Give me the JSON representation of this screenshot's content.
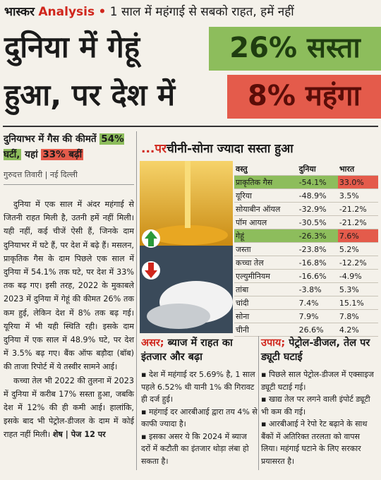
{
  "header": {
    "brand": "भास्कर",
    "section": "Analysis",
    "tagline": "1 साल में महंगाई से सबको राहत, हमें नहीं"
  },
  "headline": {
    "line1": "दुनिया में गेहूं",
    "highlight1": "26% सस्ता",
    "line2": "हुआ, पर देश में",
    "highlight2": "8% महंगा"
  },
  "subhead": {
    "text": "दुनियाभर में गैस की कीमतें",
    "world": "54% घटीं,",
    "mid": "यहां",
    "india": "33% बढ़ीं"
  },
  "byline": {
    "author": "गुरुदत्त तिवारी",
    "place": "नई दिल्ली"
  },
  "body": [
    "दुनिया में एक साल में अंदर महंगाई से जितनी राहत मिली है, उतनी हमें नहीं मिली। यही नहीं, कई चीजें ऐसी हैं, जिनके दाम दुनियाभर में घटे हैं, पर देश में बढ़े हैं। मसलन, प्राकृतिक गैस के दाम पिछले एक साल में दुनिया में 54.1% तक घटे, पर देश में 33% तक बढ़ गए। इसी तरह, 2022 के मुकाबले 2023 में दुनिया में गेहूं की कीमत 26% तक कम हुई, लेकिन देश में 8% तक बढ़ गई। यूरिया में भी यही स्थिति रही। इसके दाम दुनिया में एक साल में 48.9% घटे, पर देश में 3.5% बढ़ गए। बैंक ऑफ बड़ौदा (बॉब) की ताजा रिपोर्ट में ये तस्वीर सामने आई।",
    "कच्चा तेल भी 2022 की तुलना में 2023 में दुनिया में करीब 17% सस्ता हुआ, जबकि देश में 12% की ही कमी आई। हालांकि, इसके बाद भी पेट्रोल-डीजल के दाम में कोई राहत नहीं मिली।"
  ],
  "continued": "शेष | पेज 12 पर",
  "table": {
    "title_lead": "...पर",
    "title": "चीनी-सोना ज्यादा सस्ता हुआ",
    "headers": [
      "वस्तु",
      "दुनिया",
      "भारत"
    ],
    "rows": [
      [
        "प्राकृतिक गैस",
        "-54.1%",
        "33.0%"
      ],
      [
        "यूरिया",
        "-48.9%",
        "3.5%"
      ],
      [
        "सोयाबीन ऑयल",
        "-32.9%",
        "-21.2%"
      ],
      [
        "पॉम आयल",
        "-30.5%",
        "-21.2%"
      ],
      [
        "गेहूं",
        "-26.3%",
        "7.6%"
      ],
      [
        "जस्ता",
        "-23.8%",
        "5.2%"
      ],
      [
        "कच्चा तेल",
        "-16.8%",
        "-12.2%"
      ],
      [
        "एल्युमीनियम",
        "-16.6%",
        "-4.9%"
      ],
      [
        "तांबा",
        "-3.8%",
        "5.3%"
      ],
      [
        "चांदी",
        "7.4%",
        "15.1%"
      ],
      [
        "सोना",
        "7.9%",
        "7.8%"
      ],
      [
        "चीनी",
        "26.6%",
        "4.2%"
      ]
    ]
  },
  "boxes": [
    {
      "lead": "असर;",
      "title": "ब्याज में राहत का इंतजार और बढ़ा",
      "bullets": [
        "देश में महंगाई दर 5.69% है, 1 साल पहले 6.52% थी यानी 1% की गिरावट ही दर्ज हुई।",
        "महंगाई दर आरबीआई द्वारा तय 4% से काफी ज्यादा है।",
        "इसका असर ये कि 2024 में ब्याज दरों में कटौती का इंतजार थोड़ा लंबा हो सकता है।"
      ]
    },
    {
      "lead": "उपाय;",
      "title": "पेट्रोल-डीजल, तेल पर ड्यूटी घटाई",
      "bullets": [
        "पिछले साल पेट्रोल-डीजल में एक्साइज ड्यूटी घटाई गई।",
        "खाद्य तेल पर लगने वाली इंपोर्ट ड्यूटी भी कम की गई।",
        "आरबीआई ने रेपो रेट बढ़ाने के साथ बैंकों में अतिरिक्त तरलता को वापस लिया। महंगाई घटाने के लिए सरकार प्रयासरत है।"
      ]
    }
  ]
}
